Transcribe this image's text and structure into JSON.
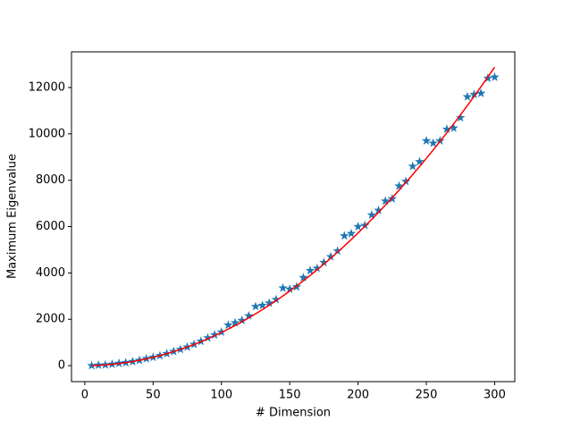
{
  "chart_data": {
    "type": "scatter",
    "xlabel": "# Dimension",
    "ylabel": "Maximum Eigenvalue",
    "x": [
      5,
      10,
      15,
      20,
      25,
      30,
      35,
      40,
      45,
      50,
      55,
      60,
      65,
      70,
      75,
      80,
      85,
      90,
      95,
      100,
      105,
      110,
      115,
      120,
      125,
      130,
      135,
      140,
      145,
      150,
      155,
      160,
      165,
      170,
      175,
      180,
      185,
      190,
      195,
      200,
      205,
      210,
      215,
      220,
      225,
      230,
      235,
      240,
      245,
      250,
      255,
      260,
      265,
      270,
      275,
      280,
      285,
      290,
      295,
      300
    ],
    "series": [
      {
        "type": "scatter",
        "marker": "star",
        "color": "#1f77b4",
        "values": [
          0,
          20,
          30,
          60,
          100,
          130,
          175,
          230,
          300,
          360,
          430,
          520,
          610,
          700,
          800,
          920,
          1050,
          1200,
          1330,
          1450,
          1750,
          1850,
          1950,
          2150,
          2550,
          2600,
          2700,
          2850,
          3350,
          3300,
          3400,
          3800,
          4100,
          4200,
          4450,
          4700,
          4950,
          5600,
          5700,
          6000,
          6050,
          6500,
          6700,
          7100,
          7200,
          7750,
          7950,
          8600,
          8800,
          9700,
          9600,
          9700,
          10200,
          10250,
          10700,
          11600,
          11700,
          11750,
          12400,
          12450
        ]
      },
      {
        "type": "line",
        "color": "#ff0000",
        "values": [
          4,
          14,
          32,
          57,
          89,
          129,
          175,
          229,
          290,
          358,
          433,
          515,
          605,
          701,
          805,
          916,
          1034,
          1159,
          1291,
          1431,
          1578,
          1732,
          1892,
          2061,
          2236,
          2418,
          2608,
          2805,
          3009,
          3220,
          3438,
          3663,
          3896,
          4136,
          4382,
          4636,
          4898,
          5166,
          5441,
          5724,
          6014,
          6311,
          6615,
          6926,
          7245,
          7570,
          7903,
          8243,
          8590,
          8944,
          9305,
          9674,
          10049,
          10432,
          10822,
          11219,
          11623,
          12035,
          12453,
          12879
        ]
      }
    ],
    "xlim": [
      -9.75,
      314.75
    ],
    "ylim": [
      -690,
      13540
    ],
    "xticks": [
      0,
      50,
      100,
      150,
      200,
      250,
      300
    ],
    "yticks": [
      0,
      2000,
      4000,
      6000,
      8000,
      10000,
      12000
    ]
  }
}
